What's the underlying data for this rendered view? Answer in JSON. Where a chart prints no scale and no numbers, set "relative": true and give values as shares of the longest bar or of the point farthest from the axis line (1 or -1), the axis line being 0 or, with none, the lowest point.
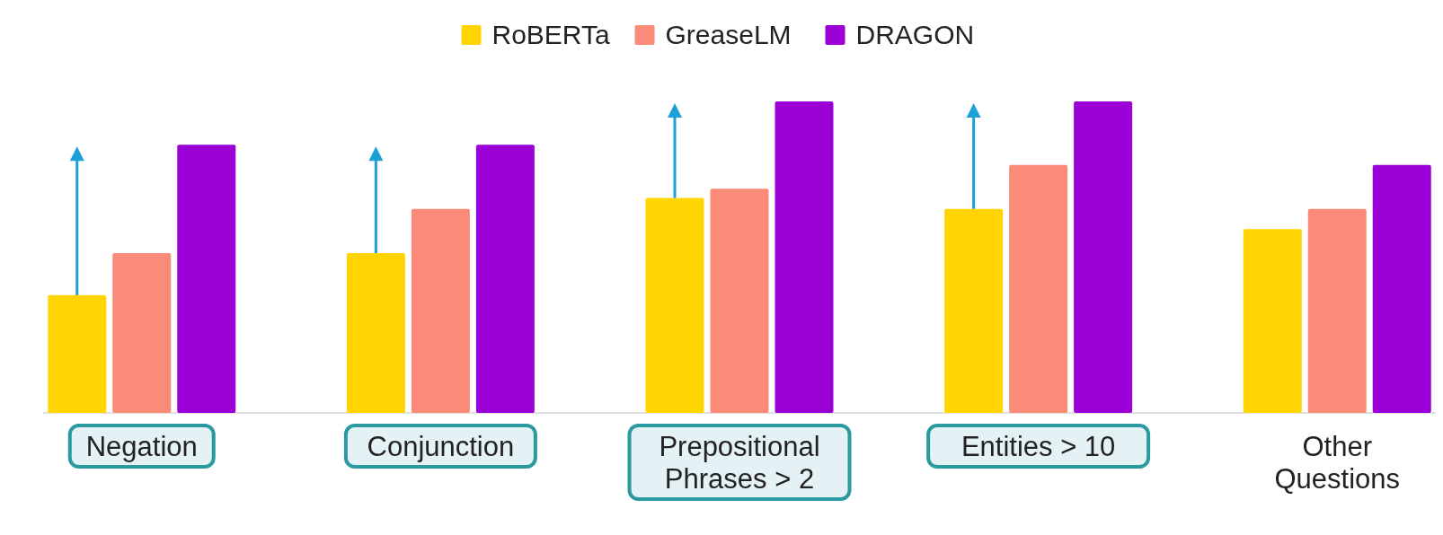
{
  "chart_data": {
    "type": "bar",
    "relative": true,
    "legend": "top",
    "categories": [
      "Negation",
      "Conjunction",
      "Prepositional Phrases > 2",
      "Entities > 10",
      "Other Questions"
    ],
    "series": [
      {
        "name": "RoBERTa",
        "color": "#ffd400",
        "values": [
          0.378,
          0.513,
          0.69,
          0.655,
          0.59
        ]
      },
      {
        "name": "GreaseLM",
        "color": "#f98b78",
        "values": [
          0.513,
          0.655,
          0.72,
          0.796,
          0.655
        ]
      },
      {
        "name": "DRAGON",
        "color": "#9b00d6",
        "values": [
          0.861,
          0.861,
          1.0,
          1.0,
          0.796
        ]
      }
    ]
  }
}
